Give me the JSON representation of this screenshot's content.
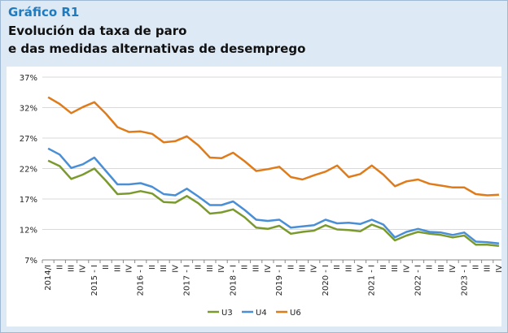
{
  "chart_data": {
    "type": "line",
    "label": "Gráfico R1",
    "title": "Evolución da taxa de paro",
    "subtitle": "e das medidas alternativas de desemprego",
    "categories": [
      "2014/I",
      "II",
      "III",
      "IV",
      "2015 - I",
      "II",
      "III",
      "IV",
      "2016 - I",
      "II",
      "III",
      "IV",
      "2017 - I",
      "II",
      "III",
      "IV",
      "2018 - I",
      "II",
      "III",
      "IV",
      "2019 - I",
      "II",
      "III",
      "IV",
      "2020 - I",
      "II",
      "III",
      "IV",
      "2021 - I",
      "II",
      "III",
      "IV",
      "2022 - I",
      "II",
      "III",
      "IV",
      "2023 - I",
      "II",
      "III",
      "IV"
    ],
    "series": [
      {
        "name": "U3",
        "color": "#7a9a2e",
        "values": [
          23.3,
          22.4,
          20.3,
          21.0,
          22.0,
          20.0,
          17.8,
          17.9,
          18.3,
          17.9,
          16.5,
          16.4,
          17.5,
          16.3,
          14.6,
          14.8,
          15.3,
          14.0,
          12.3,
          12.1,
          12.6,
          11.3,
          11.6,
          11.8,
          12.7,
          12.0,
          11.9,
          11.7,
          12.8,
          12.1,
          10.2,
          11.0,
          11.6,
          11.3,
          11.1,
          10.7,
          11.0,
          9.5,
          9.5,
          9.3
        ]
      },
      {
        "name": "U4",
        "color": "#4a8fd6",
        "values": [
          25.3,
          24.3,
          22.1,
          22.7,
          23.8,
          21.6,
          19.4,
          19.4,
          19.6,
          19.0,
          17.8,
          17.6,
          18.7,
          17.4,
          16.0,
          16.0,
          16.6,
          15.2,
          13.6,
          13.4,
          13.6,
          12.3,
          12.5,
          12.7,
          13.6,
          13.0,
          13.1,
          12.9,
          13.6,
          12.8,
          10.7,
          11.6,
          12.1,
          11.6,
          11.5,
          11.1,
          11.5,
          10.0,
          9.9,
          9.7
        ]
      },
      {
        "name": "U6",
        "color": "#e07b1a",
        "values": [
          33.7,
          32.6,
          31.1,
          32.1,
          32.9,
          31.0,
          28.8,
          28.0,
          28.1,
          27.7,
          26.3,
          26.5,
          27.3,
          25.8,
          23.8,
          23.7,
          24.6,
          23.2,
          21.6,
          21.9,
          22.3,
          20.6,
          20.2,
          20.9,
          21.5,
          22.5,
          20.6,
          21.1,
          22.5,
          21.0,
          19.1,
          19.9,
          20.2,
          19.5,
          19.2,
          18.9,
          18.9,
          17.8,
          17.6,
          17.7
        ]
      }
    ],
    "ylim": [
      7,
      37
    ],
    "yticks": [
      {
        "value": 7,
        "label": "7%"
      },
      {
        "value": 12,
        "label": "12%"
      },
      {
        "value": 17,
        "label": "17%"
      },
      {
        "value": 22,
        "label": "22%"
      },
      {
        "value": 27,
        "label": "27%"
      },
      {
        "value": 32,
        "label": "32%"
      },
      {
        "value": 37,
        "label": "37%"
      }
    ],
    "grid": true,
    "legend": "bottom"
  }
}
